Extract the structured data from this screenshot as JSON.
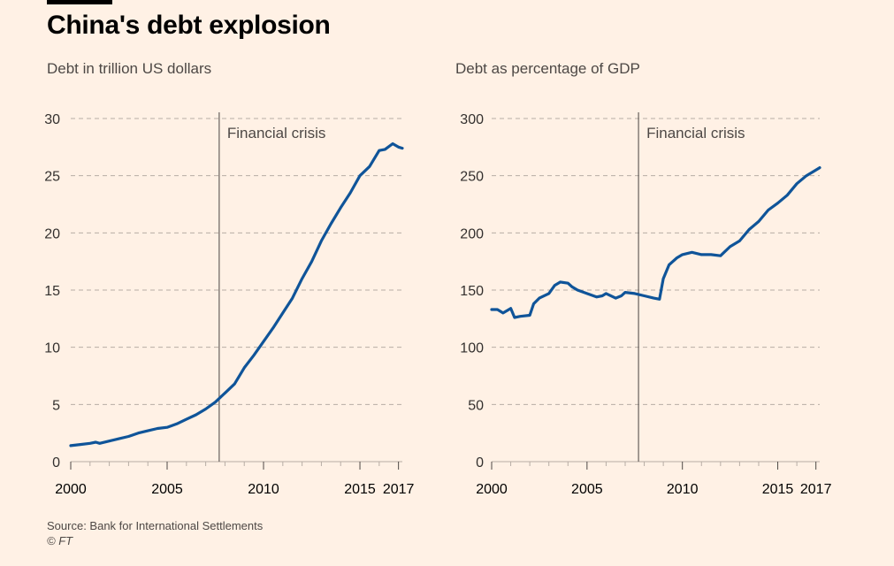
{
  "header": {
    "title": "China's debt explosion"
  },
  "footer": {
    "source": "Source: Bank for International Settlements",
    "copyright": "© FT"
  },
  "colors": {
    "background": "#fff1e5",
    "line": "#0f5499",
    "grid": "#b7ada5",
    "text": "#33302e"
  },
  "chart_data": [
    {
      "type": "line",
      "title": "Debt in trillion US dollars",
      "xlabel": "",
      "ylabel": "",
      "xlim": [
        2000,
        2017.2
      ],
      "ylim": [
        0,
        30
      ],
      "yticks": [
        0,
        5,
        10,
        15,
        20,
        25,
        30
      ],
      "xticks": [
        2000,
        2005,
        2010,
        2015,
        2017
      ],
      "annotation": {
        "label": "Financial crisis",
        "x": 2007.7
      },
      "grid": "horizontal dashed",
      "series": [
        {
          "name": "Debt (trillion US$)",
          "x": [
            2000,
            2000.5,
            2001,
            2001.3,
            2001.5,
            2002,
            2002.5,
            2003,
            2003.5,
            2004,
            2004.5,
            2005,
            2005.5,
            2006,
            2006.5,
            2007,
            2007.5,
            2008,
            2008.5,
            2009,
            2009.5,
            2010,
            2010.5,
            2011,
            2011.5,
            2012,
            2012.5,
            2013,
            2013.5,
            2014,
            2014.5,
            2015,
            2015.5,
            2016,
            2016.3,
            2016.7,
            2017,
            2017.2
          ],
          "y": [
            1.4,
            1.5,
            1.6,
            1.7,
            1.6,
            1.8,
            2.0,
            2.2,
            2.5,
            2.7,
            2.9,
            3.0,
            3.3,
            3.7,
            4.1,
            4.6,
            5.2,
            6.0,
            6.8,
            8.2,
            9.3,
            10.5,
            11.7,
            13.0,
            14.3,
            16.0,
            17.5,
            19.3,
            20.8,
            22.2,
            23.5,
            25.0,
            25.8,
            27.2,
            27.3,
            27.8,
            27.5,
            27.4
          ]
        }
      ]
    },
    {
      "type": "line",
      "title": "Debt as percentage of GDP",
      "xlabel": "",
      "ylabel": "",
      "xlim": [
        2000,
        2017.2
      ],
      "ylim": [
        0,
        300
      ],
      "yticks": [
        0,
        50,
        100,
        150,
        200,
        250,
        300
      ],
      "xticks": [
        2000,
        2005,
        2010,
        2015,
        2017
      ],
      "annotation": {
        "label": "Financial crisis",
        "x": 2007.7
      },
      "grid": "horizontal dashed",
      "series": [
        {
          "name": "Debt (% of GDP)",
          "x": [
            2000,
            2000.3,
            2000.6,
            2001,
            2001.2,
            2001.5,
            2002,
            2002.2,
            2002.5,
            2003,
            2003.3,
            2003.6,
            2004,
            2004.2,
            2004.5,
            2005,
            2005.5,
            2005.8,
            2006,
            2006.5,
            2006.8,
            2007,
            2007.5,
            2008,
            2008.5,
            2008.8,
            2009,
            2009.3,
            2009.7,
            2010,
            2010.5,
            2011,
            2011.5,
            2012,
            2012.5,
            2013,
            2013.5,
            2014,
            2014.5,
            2015,
            2015.5,
            2016,
            2016.5,
            2017,
            2017.2
          ],
          "y": [
            133,
            133,
            130,
            134,
            126,
            127,
            128,
            138,
            143,
            147,
            154,
            157,
            156,
            153,
            150,
            147,
            144,
            145,
            147,
            143,
            145,
            148,
            147,
            145,
            143,
            142,
            160,
            172,
            178,
            181,
            183,
            181,
            181,
            180,
            188,
            193,
            203,
            210,
            220,
            226,
            233,
            243,
            250,
            255,
            257
          ]
        }
      ]
    }
  ]
}
